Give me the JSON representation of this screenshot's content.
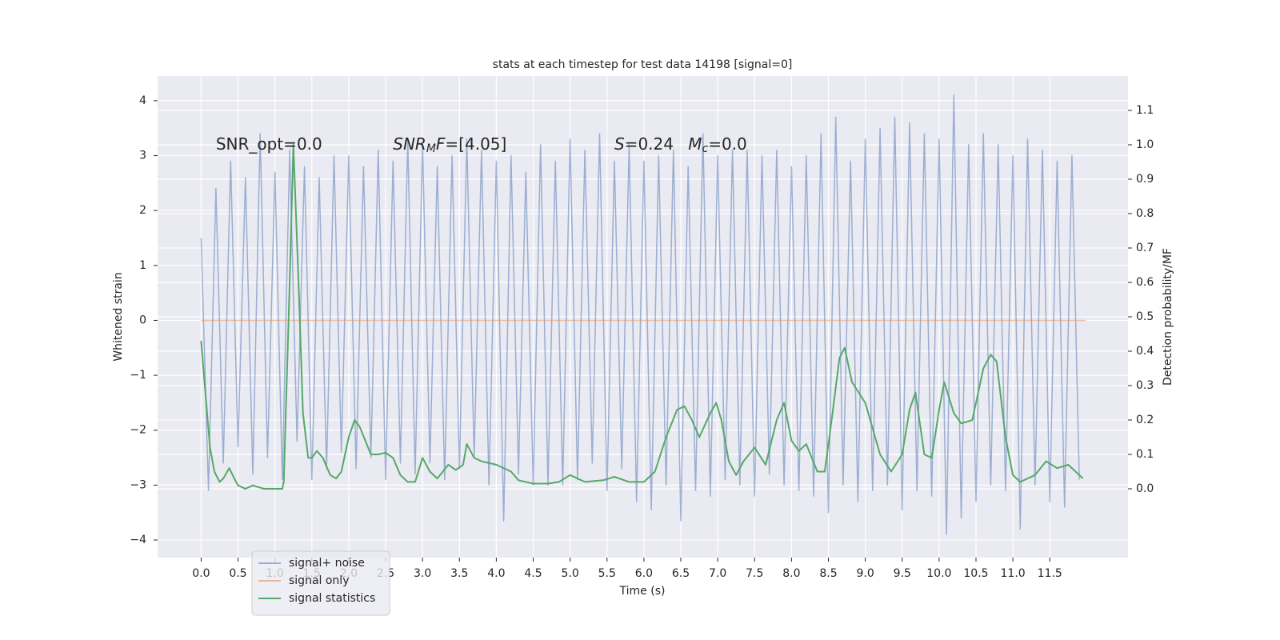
{
  "chart_data": {
    "type": "line",
    "title": "stats at each timestep for test data 14198 [signal=0]",
    "x_label": "Time (s)",
    "y_label": "Whitened strain",
    "y2_label": "Detection probability/MF",
    "xlim": [
      -0.59,
      12.56
    ],
    "ylim": [
      -4.32,
      4.45
    ],
    "y2lim": [
      -0.2,
      1.2
    ],
    "xticks": [
      {
        "value": 0,
        "label": "0.0"
      },
      0.5,
      {
        "value": 1,
        "label": "1.0"
      },
      1.5,
      {
        "value": 2,
        "label": "2.0"
      },
      2.5,
      {
        "value": 3,
        "label": "3.0"
      },
      3.5,
      {
        "value": 4,
        "label": "4.0"
      },
      4.5,
      {
        "value": 5,
        "label": "5.0"
      },
      5.5,
      {
        "value": 6,
        "label": "6.0"
      },
      6.5,
      {
        "value": 7,
        "label": "7.0"
      },
      7.5,
      {
        "value": 8,
        "label": "8.0"
      },
      8.5,
      {
        "value": 9,
        "label": "9.0"
      },
      9.5,
      {
        "value": 10,
        "label": "10.0"
      },
      10.5,
      {
        "value": 11,
        "label": "11.0"
      },
      11.5
    ],
    "yticks": [
      {
        "value": -4,
        "label": "−4"
      },
      {
        "value": -3,
        "label": "−3"
      },
      {
        "value": -2,
        "label": "−2"
      },
      {
        "value": -1,
        "label": "−1"
      },
      0,
      1,
      2,
      3,
      4
    ],
    "y2ticks": [
      {
        "value": 0,
        "label": "0.0"
      },
      0.1,
      0.2,
      0.3,
      0.4,
      0.5,
      0.6,
      0.7,
      0.8,
      0.9,
      {
        "value": 1,
        "label": "1.0"
      },
      1.1
    ],
    "grid": true,
    "legend": "lower left",
    "annotations": [
      {
        "x": 0.2,
        "y": 3.2,
        "parts": [
          {
            "text": "SNR_opt=0.0",
            "style": "normal"
          }
        ]
      },
      {
        "x": 2.6,
        "y": 3.2,
        "parts": [
          {
            "text": "SNR",
            "style": "italic"
          },
          {
            "text": "M",
            "style": "italic-sub"
          },
          {
            "text": "F",
            "style": "italic"
          },
          {
            "text": "=[4.05]",
            "style": "normal"
          }
        ]
      },
      {
        "x": 5.6,
        "y": 3.2,
        "parts": [
          {
            "text": "S",
            "style": "italic"
          },
          {
            "text": "=0.24",
            "style": "normal"
          }
        ]
      },
      {
        "x": 6.6,
        "y": 3.2,
        "parts": [
          {
            "text": "M",
            "style": "italic"
          },
          {
            "text": "c",
            "style": "italic-sub"
          },
          {
            "text": "=0.0",
            "style": "normal"
          }
        ]
      }
    ],
    "series": [
      {
        "name": "signal+ noise",
        "color": "#4c72b0",
        "axis": "y",
        "x": [
          0.0,
          0.1,
          0.2,
          0.3,
          0.4,
          0.5,
          0.6,
          0.7,
          0.8,
          0.9,
          1.0,
          1.1,
          1.2,
          1.3,
          1.4,
          1.5,
          1.6,
          1.7,
          1.8,
          1.9,
          2.0,
          2.1,
          2.2,
          2.3,
          2.4,
          2.5,
          2.6,
          2.7,
          2.8,
          2.9,
          3.0,
          3.1,
          3.2,
          3.3,
          3.4,
          3.5,
          3.6,
          3.7,
          3.8,
          3.9,
          4.0,
          4.1,
          4.2,
          4.3,
          4.4,
          4.5,
          4.6,
          4.7,
          4.8,
          4.9,
          5.0,
          5.1,
          5.2,
          5.3,
          5.4,
          5.5,
          5.6,
          5.7,
          5.8,
          5.9,
          6.0,
          6.1,
          6.2,
          6.3,
          6.4,
          6.5,
          6.6,
          6.7,
          6.8,
          6.9,
          7.0,
          7.1,
          7.2,
          7.3,
          7.4,
          7.5,
          7.6,
          7.7,
          7.8,
          7.9,
          8.0,
          8.1,
          8.2,
          8.3,
          8.4,
          8.5,
          8.6,
          8.7,
          8.8,
          8.9,
          9.0,
          9.1,
          9.2,
          9.3,
          9.4,
          9.5,
          9.6,
          9.7,
          9.8,
          9.9,
          10.0,
          10.1,
          10.2,
          10.3,
          10.4,
          10.5,
          10.6,
          10.7,
          10.8,
          10.9,
          11.0,
          11.1,
          11.2,
          11.3,
          11.4,
          11.5,
          11.6,
          11.7,
          11.8,
          11.9
        ],
        "values": [
          1.5,
          -3.1,
          2.4,
          -2.6,
          2.9,
          -2.3,
          2.6,
          -2.8,
          3.4,
          -2.5,
          2.7,
          -2.9,
          3.1,
          -2.2,
          2.8,
          -2.9,
          2.6,
          -2.7,
          3.0,
          -2.4,
          3.0,
          -2.7,
          2.8,
          -2.5,
          3.1,
          -2.9,
          2.9,
          -2.6,
          3.3,
          -2.8,
          3.2,
          -2.6,
          2.8,
          -2.9,
          3.0,
          -2.7,
          3.3,
          -2.5,
          3.1,
          -3.0,
          2.9,
          -3.65,
          3.0,
          -2.8,
          2.7,
          -3.0,
          3.2,
          -3.0,
          2.9,
          -3.0,
          3.3,
          -2.9,
          3.1,
          -2.6,
          3.4,
          -3.1,
          2.9,
          -2.7,
          3.2,
          -3.3,
          2.9,
          -3.45,
          3.0,
          -3.0,
          3.1,
          -3.65,
          2.8,
          -3.1,
          3.4,
          -3.2,
          3.0,
          -2.9,
          3.1,
          -3.0,
          3.1,
          -3.2,
          3.0,
          -2.8,
          3.1,
          -3.0,
          2.8,
          -3.1,
          3.0,
          -3.2,
          3.4,
          -3.5,
          3.7,
          -3.0,
          2.9,
          -3.3,
          3.3,
          -3.1,
          3.5,
          -3.0,
          3.7,
          -3.45,
          3.6,
          -3.1,
          3.4,
          -3.2,
          3.3,
          -3.9,
          4.1,
          -3.6,
          3.2,
          -3.3,
          3.4,
          -3.0,
          3.2,
          -3.1,
          3.0,
          -3.8,
          3.3,
          -3.0,
          3.1,
          -3.3,
          2.9,
          -3.4,
          3.0,
          -2.9
        ]
      },
      {
        "name": "signal only",
        "color": "#dd8452",
        "axis": "y",
        "x": [
          0.0,
          11.99
        ],
        "values": [
          0,
          0
        ]
      },
      {
        "name": "signal statistics",
        "color": "#55a868",
        "axis": "y2",
        "x": [
          0.0,
          0.05,
          0.12,
          0.18,
          0.25,
          0.3,
          0.38,
          0.45,
          0.5,
          0.6,
          0.7,
          0.85,
          1.0,
          1.1,
          1.12,
          1.2,
          1.25,
          1.32,
          1.38,
          1.45,
          1.5,
          1.57,
          1.65,
          1.75,
          1.83,
          1.9,
          2.0,
          2.08,
          2.15,
          2.3,
          2.4,
          2.5,
          2.6,
          2.7,
          2.8,
          2.9,
          3.0,
          3.1,
          3.2,
          3.35,
          3.45,
          3.55,
          3.6,
          3.7,
          3.8,
          4.0,
          4.2,
          4.3,
          4.5,
          4.7,
          4.85,
          5.0,
          5.2,
          5.45,
          5.6,
          5.8,
          6.0,
          6.15,
          6.3,
          6.45,
          6.55,
          6.65,
          6.75,
          6.9,
          6.98,
          7.05,
          7.15,
          7.25,
          7.35,
          7.5,
          7.65,
          7.8,
          7.9,
          8.0,
          8.1,
          8.2,
          8.35,
          8.45,
          8.55,
          8.65,
          8.72,
          8.82,
          9.0,
          9.2,
          9.35,
          9.5,
          9.6,
          9.68,
          9.8,
          9.9,
          10.0,
          10.07,
          10.2,
          10.3,
          10.45,
          10.6,
          10.7,
          10.78,
          10.9,
          11.0,
          11.1,
          11.3,
          11.45,
          11.6,
          11.75,
          11.95
        ],
        "values": [
          0.43,
          0.3,
          0.12,
          0.05,
          0.02,
          0.03,
          0.06,
          0.03,
          0.01,
          0.0,
          0.01,
          0.0,
          0.0,
          0.0,
          0.02,
          0.6,
          1.0,
          0.6,
          0.22,
          0.09,
          0.09,
          0.11,
          0.09,
          0.04,
          0.03,
          0.05,
          0.15,
          0.2,
          0.18,
          0.1,
          0.1,
          0.105,
          0.09,
          0.04,
          0.02,
          0.02,
          0.09,
          0.05,
          0.03,
          0.07,
          0.055,
          0.07,
          0.13,
          0.09,
          0.08,
          0.07,
          0.05,
          0.025,
          0.015,
          0.015,
          0.02,
          0.04,
          0.02,
          0.025,
          0.035,
          0.02,
          0.02,
          0.05,
          0.15,
          0.23,
          0.24,
          0.2,
          0.15,
          0.22,
          0.25,
          0.2,
          0.08,
          0.04,
          0.08,
          0.12,
          0.07,
          0.2,
          0.25,
          0.14,
          0.11,
          0.13,
          0.05,
          0.05,
          0.21,
          0.38,
          0.41,
          0.31,
          0.25,
          0.1,
          0.05,
          0.1,
          0.23,
          0.28,
          0.1,
          0.09,
          0.23,
          0.31,
          0.22,
          0.19,
          0.2,
          0.35,
          0.39,
          0.37,
          0.15,
          0.04,
          0.02,
          0.04,
          0.08,
          0.06,
          0.07,
          0.03
        ]
      }
    ]
  }
}
